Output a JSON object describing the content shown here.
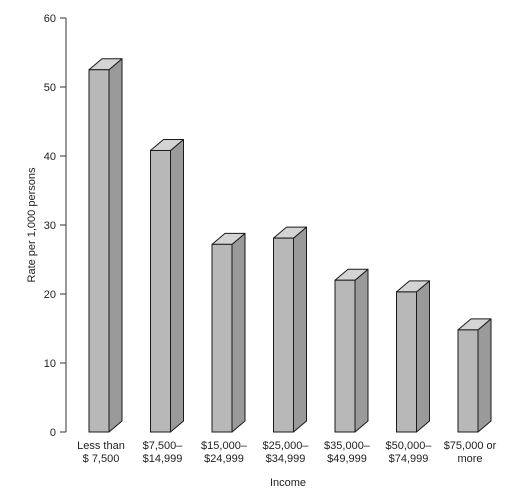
{
  "chart_data": {
    "type": "bar",
    "title": "",
    "xlabel": "Income",
    "ylabel": "Rate per 1,000 persons",
    "ylim": [
      0,
      60
    ],
    "yticks": [
      0,
      10,
      20,
      30,
      40,
      50,
      60
    ],
    "grid": false,
    "categories": [
      [
        "Less than",
        "$ 7,500"
      ],
      [
        "$7,500–",
        "$14,999"
      ],
      [
        "$15,000–",
        "$24,999"
      ],
      [
        "$25,000–",
        "$34,999"
      ],
      [
        "$35,000–",
        "$49,999"
      ],
      [
        "$50,000–",
        "$74,999"
      ],
      [
        "$75,000 or",
        "more"
      ]
    ],
    "values": [
      52.5,
      40.8,
      27.2,
      28.1,
      22.0,
      20.3,
      14.8
    ],
    "colors": {
      "bar_front": "#b8b8b8",
      "bar_side": "#9a9a9a",
      "bar_top": "#d4d4d4",
      "bar_stroke": "#1a1a1a",
      "axis": "#333333"
    }
  }
}
